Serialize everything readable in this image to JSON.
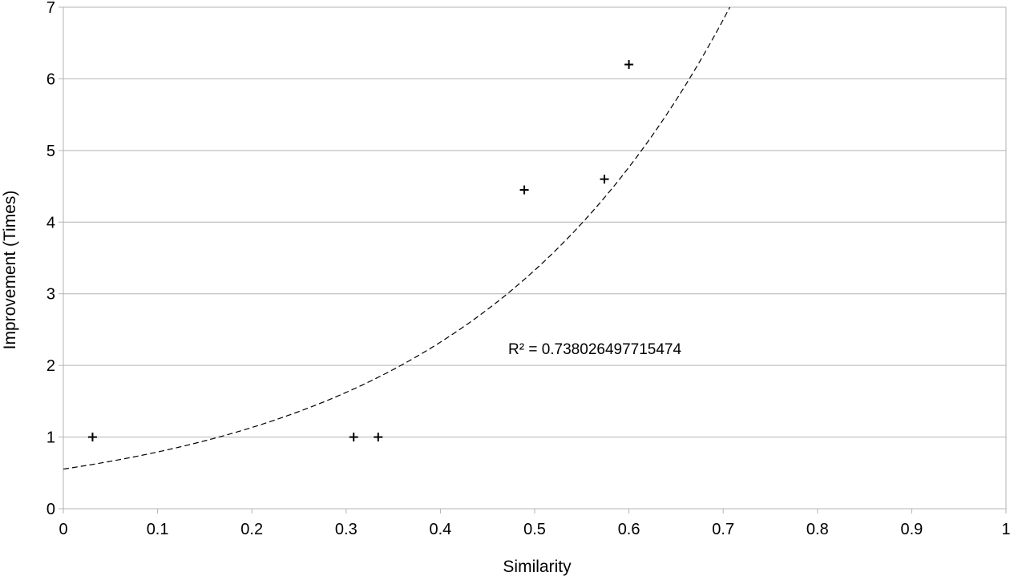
{
  "chart_data": {
    "type": "scatter",
    "xlabel": "Similarity",
    "ylabel": "Improvement (Times)",
    "xlim": [
      0,
      1
    ],
    "ylim": [
      0,
      7
    ],
    "x_ticks": [
      0,
      0.1,
      0.2,
      0.3,
      0.4,
      0.5,
      0.6,
      0.7,
      0.8,
      0.9,
      1
    ],
    "x_tick_labels": [
      "0",
      "0.1",
      "0.2",
      "0.3",
      "0.4",
      "0.5",
      "0.6",
      "0.7",
      "0.8",
      "0.9",
      "1"
    ],
    "y_ticks": [
      0,
      1,
      2,
      3,
      4,
      5,
      6,
      7
    ],
    "y_tick_labels": [
      "0",
      "1",
      "2",
      "3",
      "4",
      "5",
      "6",
      "7"
    ],
    "grid": "horizontal",
    "marker": "plus",
    "colors": {
      "points": "#000000",
      "trendline": "#000000",
      "grid": "#b3b3b3"
    },
    "points": [
      {
        "x": 0.031,
        "y": 1.0
      },
      {
        "x": 0.308,
        "y": 1.0
      },
      {
        "x": 0.334,
        "y": 1.0
      },
      {
        "x": 0.489,
        "y": 4.45
      },
      {
        "x": 0.574,
        "y": 4.6
      },
      {
        "x": 0.6,
        "y": 6.2
      }
    ],
    "trendline": {
      "type": "exponential",
      "a": 0.553,
      "b": 3.59,
      "style": "dashed"
    },
    "annotation": "R² = 0.738026497715474"
  }
}
